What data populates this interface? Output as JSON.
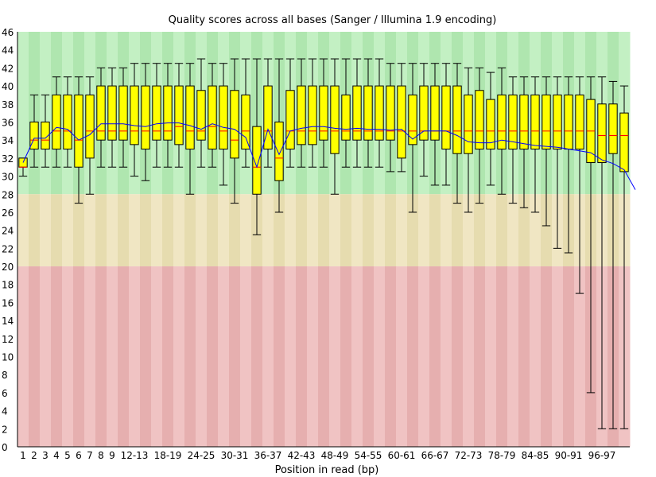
{
  "chart_data": {
    "type": "box",
    "title": "Quality scores across all bases (Sanger / Illumina 1.9 encoding)",
    "xlabel": "Position in read (bp)",
    "ylabel": "",
    "ylim": [
      0,
      46
    ],
    "y_ticks": [
      0,
      2,
      4,
      6,
      8,
      10,
      12,
      14,
      16,
      18,
      20,
      22,
      24,
      26,
      28,
      30,
      32,
      34,
      36,
      38,
      40,
      42,
      44,
      46
    ],
    "grid": false,
    "zones": [
      {
        "name": "good",
        "from": 28,
        "to": 46,
        "color_light": "#afe6af",
        "color_dark": "#c3f0c3"
      },
      {
        "name": "reasonable",
        "from": 20,
        "to": 28,
        "color_light": "#e6dcaf",
        "color_dark": "#f0e6c3"
      },
      {
        "name": "poor",
        "from": 0,
        "to": 20,
        "color_light": "#e6afaf",
        "color_dark": "#f0c3c3"
      }
    ],
    "colors": {
      "box": "#ffff00",
      "median": "#ff0000",
      "mean_line": "#0000ff",
      "whisker": "#000000"
    },
    "categories": [
      "1",
      "2",
      "3",
      "4",
      "5",
      "6",
      "7",
      "8",
      "9",
      "10-11",
      "12-13",
      "14-15",
      "16-17",
      "18-19",
      "20-21",
      "22-23",
      "24-25",
      "26-27",
      "28-29",
      "30-31",
      "32-33",
      "34-35",
      "36-37",
      "38-39",
      "40-41",
      "42-43",
      "44-45",
      "46-47",
      "48-49",
      "50-51",
      "52-53",
      "54-55",
      "56-57",
      "58-59",
      "60-61",
      "62-63",
      "64-65",
      "66-67",
      "68-69",
      "70-71",
      "72-73",
      "74-75",
      "76-77",
      "78-79",
      "80-81",
      "82-83",
      "84-85",
      "86-87",
      "88-89",
      "90-91",
      "92-93",
      "94-95",
      "96-97",
      "98-99",
      "100-101"
    ],
    "tick_labels": [
      "1",
      "2",
      "3",
      "4",
      "5",
      "6",
      "7",
      "8",
      "9",
      "12-13",
      "18-19",
      "24-25",
      "30-31",
      "36-37",
      "42-43",
      "48-49",
      "54-55",
      "60-61",
      "66-67",
      "72-73",
      "78-79",
      "84-85",
      "90-91",
      "96-97"
    ],
    "tick_positions": [
      0,
      1,
      2,
      3,
      4,
      5,
      6,
      7,
      8,
      10,
      13,
      16,
      19,
      22,
      25,
      28,
      31,
      34,
      37,
      40,
      43,
      46,
      49,
      52
    ],
    "series": {
      "whisker_low": [
        30,
        31,
        31,
        31,
        31,
        27,
        28,
        31,
        31,
        31,
        30,
        29.5,
        31,
        31,
        31,
        28,
        31,
        31,
        29,
        27,
        31,
        23.5,
        31,
        26,
        31,
        31,
        31,
        31,
        28,
        31,
        31,
        31,
        31,
        30.5,
        30.5,
        26,
        30,
        29,
        29,
        27,
        26,
        27,
        29,
        28,
        27,
        26.5,
        26,
        24.5,
        22,
        21.5,
        17,
        6,
        2,
        2,
        2,
        2
      ],
      "q1": [
        31,
        33,
        33,
        33,
        33,
        31,
        32,
        34,
        34,
        34,
        33.5,
        33,
        34,
        34,
        33.5,
        33,
        34,
        33,
        33,
        32,
        33,
        28,
        33,
        29.5,
        33,
        33.5,
        33.5,
        34,
        32.5,
        34,
        34,
        34,
        34,
        34,
        32,
        33.5,
        34,
        34,
        33,
        32.5,
        32.5,
        33,
        33,
        33,
        33,
        33,
        33,
        33,
        33,
        33,
        33,
        31.5,
        31.5,
        32.5,
        30.5,
        28
      ],
      "median": [
        31,
        34,
        34,
        35,
        35,
        34,
        35,
        35,
        35,
        35,
        35,
        35,
        35,
        35,
        35.5,
        35,
        35,
        35.5,
        35,
        34,
        35,
        31,
        35,
        32,
        35,
        35,
        35,
        35,
        35,
        35,
        35,
        35,
        35,
        35,
        35,
        35,
        35,
        35,
        35,
        35,
        35,
        35,
        35,
        35,
        35,
        35,
        35,
        35,
        35,
        35,
        35,
        35,
        34.5,
        34.5,
        34.5,
        33
      ],
      "q3": [
        32,
        36,
        36,
        39,
        39,
        39,
        39,
        40,
        40,
        40,
        40,
        40,
        40,
        40,
        40,
        40,
        39.5,
        40,
        40,
        39.5,
        39,
        35.5,
        40,
        36,
        39.5,
        40,
        40,
        40,
        40,
        39,
        40,
        40,
        40,
        40,
        40,
        39,
        40,
        40,
        40,
        40,
        39,
        39.5,
        38.5,
        39,
        39,
        39,
        39,
        39,
        39,
        39,
        39,
        38.5,
        38,
        38,
        37,
        36
      ],
      "whisker_high": [
        32,
        39,
        39,
        41,
        41,
        41,
        41,
        42,
        42,
        42,
        42.5,
        42.5,
        42.5,
        42.5,
        42.5,
        42.5,
        43,
        42.5,
        42.5,
        43,
        43,
        43,
        43,
        43,
        43,
        43,
        43,
        43,
        43,
        43,
        43,
        43,
        43,
        42.5,
        42.5,
        42.5,
        42.5,
        42.5,
        42.5,
        42.5,
        42,
        42,
        41.5,
        42,
        41,
        41,
        41,
        41,
        41,
        41,
        41,
        41,
        41,
        40.5,
        40,
        39
      ],
      "mean": [
        31.5,
        34.2,
        34.2,
        35.4,
        35.2,
        34,
        34.6,
        35.8,
        35.8,
        35.8,
        35.6,
        35.5,
        35.8,
        35.9,
        35.9,
        35.6,
        35.2,
        35.8,
        35.4,
        35.2,
        34.3,
        31,
        35.2,
        32.4,
        35,
        35.3,
        35.5,
        35.5,
        35.3,
        35.2,
        35.3,
        35.2,
        35.2,
        35.1,
        35.2,
        34.1,
        35,
        35,
        35,
        34.5,
        33.8,
        33.7,
        33.7,
        34,
        33.8,
        33.6,
        33.4,
        33.3,
        33.2,
        33,
        32.8,
        32.6,
        31.8,
        31.4,
        30.7,
        28.5
      ]
    }
  }
}
